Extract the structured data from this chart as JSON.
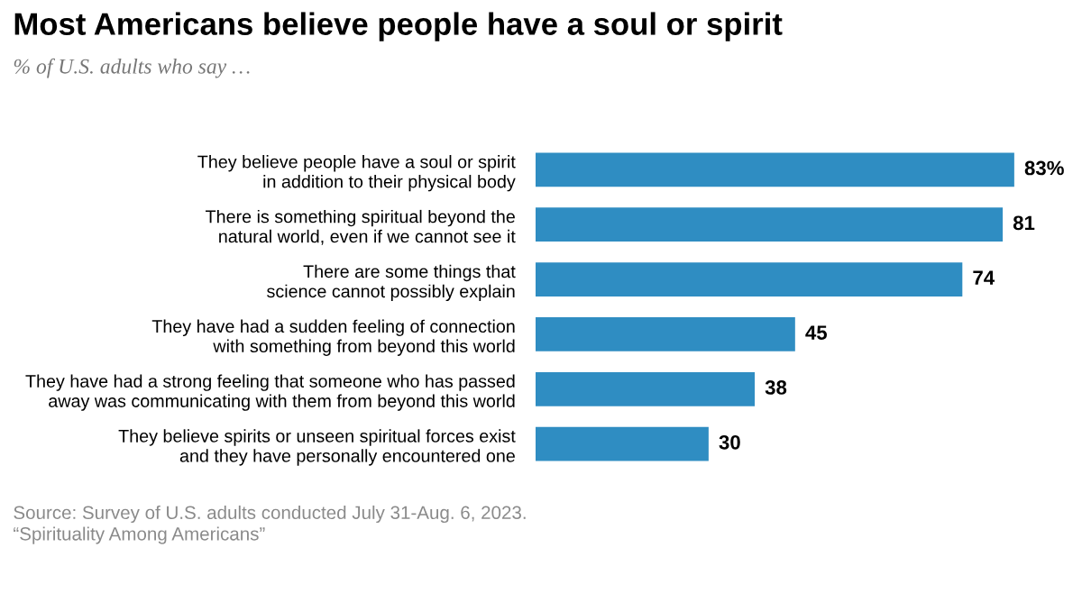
{
  "chart_data": {
    "type": "bar",
    "orientation": "horizontal",
    "title": "Most Americans believe people have a soul or spirit",
    "subtitle": "% of U.S. adults who say …",
    "categories": [
      "They believe people have a soul or spirit\nin addition to their physical body",
      "There is something spiritual beyond the\nnatural world, even if we cannot see it",
      "There are some things that\nscience cannot possibly explain",
      "They have had a sudden feeling of connection\nwith something from beyond this world",
      "They have had a strong feeling that someone who has passed\naway was communicating with them from beyond this world",
      "They believe spirits or unseen spiritual forces exist\nand they have personally encountered one"
    ],
    "values": [
      83,
      81,
      74,
      45,
      38,
      30
    ],
    "value_labels": [
      "83%",
      "81",
      "74",
      "45",
      "38",
      "30"
    ],
    "color": "#2f8dc2",
    "annotations": [
      "Source: Survey of U.S. adults conducted July 31-Aug. 6, 2023.\n“Spirituality Among Americans”"
    ]
  }
}
